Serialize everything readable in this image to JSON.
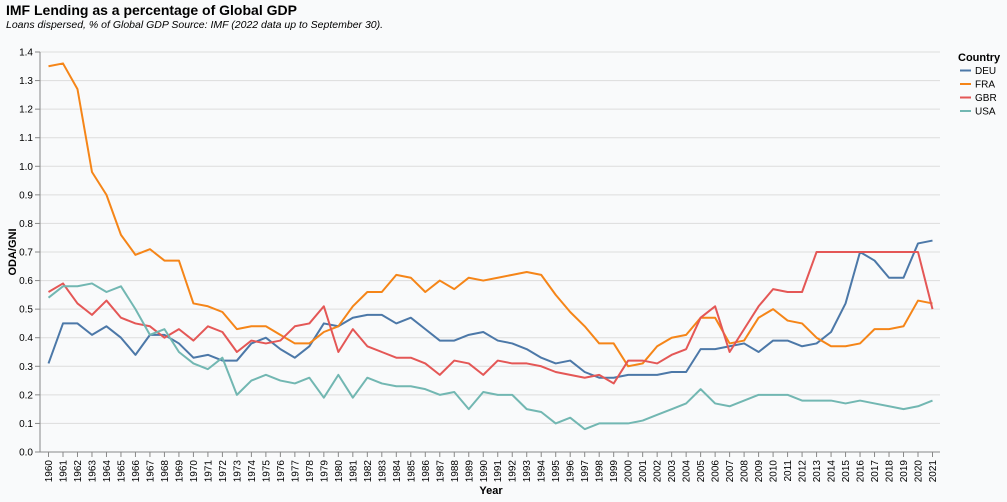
{
  "header": {
    "title": "IMF Lending as a percentage of Global GDP",
    "subtitle": "Loans dispersed, % of Global GDP Source: IMF (2022 data up to September 30)."
  },
  "chart_data": {
    "type": "line",
    "xlabel": "Year",
    "ylabel": "ODA/GNI",
    "ylim": [
      0,
      1.4
    ],
    "yticks": [
      0.0,
      0.1,
      0.2,
      0.3,
      0.4,
      0.5,
      0.6,
      0.7,
      0.8,
      0.9,
      1.0,
      1.1,
      1.2,
      1.3,
      1.4
    ],
    "ytick_labels": [
      "0.0",
      "0.1",
      "0.2",
      "0.3",
      "0.4",
      "0.5",
      "0.6",
      "0.7",
      "0.8",
      "0.9",
      "1.0",
      "1.1",
      "1.2",
      "1.3",
      "1.4"
    ],
    "grid": true,
    "legend": {
      "title": "Country",
      "position": "right"
    },
    "x": [
      "1960",
      "1961",
      "1962",
      "1963",
      "1964",
      "1965",
      "1966",
      "1967",
      "1968",
      "1969",
      "1970",
      "1971",
      "1972",
      "1973",
      "1974",
      "1975",
      "1976",
      "1977",
      "1978",
      "1979",
      "1980",
      "1981",
      "1982",
      "1983",
      "1984",
      "1985",
      "1986",
      "1987",
      "1988",
      "1989",
      "1990",
      "1991",
      "1992",
      "1993",
      "1994",
      "1995",
      "1996",
      "1997",
      "1998",
      "1999",
      "2000",
      "2001",
      "2002",
      "2003",
      "2004",
      "2005",
      "2006",
      "2007",
      "2008",
      "2009",
      "2010",
      "2011",
      "2012",
      "2013",
      "2014",
      "2015",
      "2016",
      "2017",
      "2018",
      "2019",
      "2020",
      "2021"
    ],
    "series": [
      {
        "name": "DEU",
        "color": "#4c78a8",
        "values": [
          0.31,
          0.45,
          0.45,
          0.41,
          0.44,
          0.4,
          0.34,
          0.41,
          0.41,
          0.38,
          0.33,
          0.34,
          0.32,
          0.32,
          0.38,
          0.4,
          0.36,
          0.33,
          0.37,
          0.45,
          0.44,
          0.47,
          0.48,
          0.48,
          0.45,
          0.47,
          0.43,
          0.39,
          0.39,
          0.41,
          0.42,
          0.39,
          0.38,
          0.36,
          0.33,
          0.31,
          0.32,
          0.28,
          0.26,
          0.26,
          0.27,
          0.27,
          0.27,
          0.28,
          0.28,
          0.36,
          0.36,
          0.37,
          0.38,
          0.35,
          0.39,
          0.39,
          0.37,
          0.38,
          0.42,
          0.52,
          0.7,
          0.67,
          0.61,
          0.61,
          0.73,
          0.74
        ]
      },
      {
        "name": "FRA",
        "color": "#f58518",
        "values": [
          1.35,
          1.36,
          1.27,
          0.98,
          0.9,
          0.76,
          0.69,
          0.71,
          0.67,
          0.67,
          0.52,
          0.51,
          0.49,
          0.43,
          0.44,
          0.44,
          0.41,
          0.38,
          0.38,
          0.42,
          0.44,
          0.51,
          0.56,
          0.56,
          0.62,
          0.61,
          0.56,
          0.6,
          0.57,
          0.61,
          0.6,
          0.61,
          0.62,
          0.63,
          0.62,
          0.55,
          0.49,
          0.44,
          0.38,
          0.38,
          0.3,
          0.31,
          0.37,
          0.4,
          0.41,
          0.47,
          0.47,
          0.38,
          0.39,
          0.47,
          0.5,
          0.46,
          0.45,
          0.4,
          0.37,
          0.37,
          0.38,
          0.43,
          0.43,
          0.44,
          0.53,
          0.52
        ]
      },
      {
        "name": "GBR",
        "color": "#e45756",
        "values": [
          0.56,
          0.59,
          0.52,
          0.48,
          0.53,
          0.47,
          0.45,
          0.44,
          0.4,
          0.43,
          0.39,
          0.44,
          0.42,
          0.35,
          0.39,
          0.38,
          0.39,
          0.44,
          0.45,
          0.51,
          0.35,
          0.43,
          0.37,
          0.35,
          0.33,
          0.33,
          0.31,
          0.27,
          0.32,
          0.31,
          0.27,
          0.32,
          0.31,
          0.31,
          0.3,
          0.28,
          0.27,
          0.26,
          0.27,
          0.24,
          0.32,
          0.32,
          0.31,
          0.34,
          0.36,
          0.47,
          0.51,
          0.35,
          0.43,
          0.51,
          0.57,
          0.56,
          0.56,
          0.7,
          0.7,
          0.7,
          0.7,
          0.7,
          0.7,
          0.7,
          0.7,
          0.5
        ]
      },
      {
        "name": "USA",
        "color": "#72b7b2",
        "values": [
          0.54,
          0.58,
          0.58,
          0.59,
          0.56,
          0.58,
          0.5,
          0.41,
          0.43,
          0.35,
          0.31,
          0.29,
          0.33,
          0.2,
          0.25,
          0.27,
          0.25,
          0.24,
          0.26,
          0.19,
          0.27,
          0.19,
          0.26,
          0.24,
          0.23,
          0.23,
          0.22,
          0.2,
          0.21,
          0.15,
          0.21,
          0.2,
          0.2,
          0.15,
          0.14,
          0.1,
          0.12,
          0.08,
          0.1,
          0.1,
          0.1,
          0.11,
          0.13,
          0.15,
          0.17,
          0.22,
          0.17,
          0.16,
          0.18,
          0.2,
          0.2,
          0.2,
          0.18,
          0.18,
          0.18,
          0.17,
          0.18,
          0.17,
          0.16,
          0.15,
          0.16,
          0.18
        ]
      }
    ]
  }
}
